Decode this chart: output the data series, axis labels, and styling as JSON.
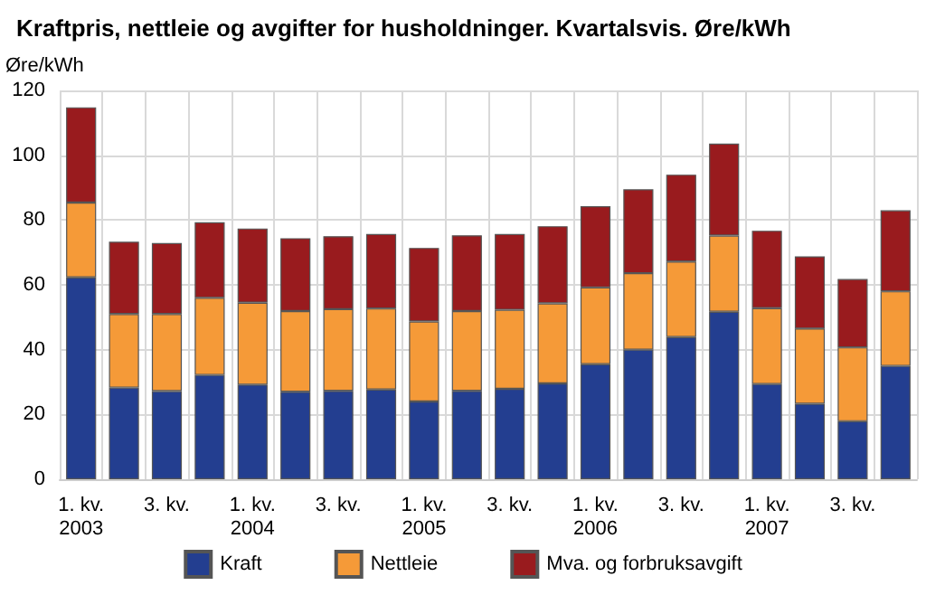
{
  "chart_data": {
    "type": "bar",
    "title": "Kraftpris, nettleie og avgifter for husholdninger. Kvartalsvis. Øre/kWh",
    "ylabel": "Øre/kWh",
    "categories": [
      "1. kv.\n2003",
      null,
      "3. kv.",
      null,
      "1. kv.\n2004",
      null,
      "3. kv.",
      null,
      "1. kv.\n2005",
      null,
      "3. kv.",
      null,
      "1. kv.\n2006",
      null,
      "3. kv.",
      null,
      "1. kv.\n2007",
      null,
      "3. kv.",
      null
    ],
    "stacked": true,
    "series": [
      {
        "name": "Kraft",
        "color": "#233e90",
        "values": [
          62.3,
          28.3,
          27.2,
          32.2,
          29.2,
          27.0,
          27.3,
          27.7,
          24.0,
          27.3,
          27.9,
          29.6,
          35.5,
          40.0,
          43.9,
          51.7,
          29.4,
          23.3,
          17.9,
          35.0
        ]
      },
      {
        "name": "Nettleie",
        "color": "#f59a38",
        "values": [
          23.1,
          22.7,
          23.8,
          23.8,
          25.3,
          24.9,
          25.2,
          25.0,
          24.7,
          24.6,
          24.4,
          24.7,
          23.7,
          23.6,
          23.3,
          23.5,
          23.4,
          23.2,
          22.8,
          23.0
        ]
      },
      {
        "name": "Mva. og forbruksavgift",
        "color": "#991b1e",
        "values": [
          29.4,
          22.3,
          21.9,
          23.3,
          22.9,
          22.5,
          22.5,
          23.0,
          22.7,
          23.4,
          23.4,
          23.8,
          25.1,
          25.9,
          26.8,
          28.4,
          23.9,
          22.3,
          21.1,
          25.0
        ]
      }
    ],
    "ylim": [
      0,
      120
    ],
    "yticks": [
      0,
      20,
      40,
      60,
      80,
      100,
      120
    ],
    "grid": true,
    "legend": "bottom"
  }
}
